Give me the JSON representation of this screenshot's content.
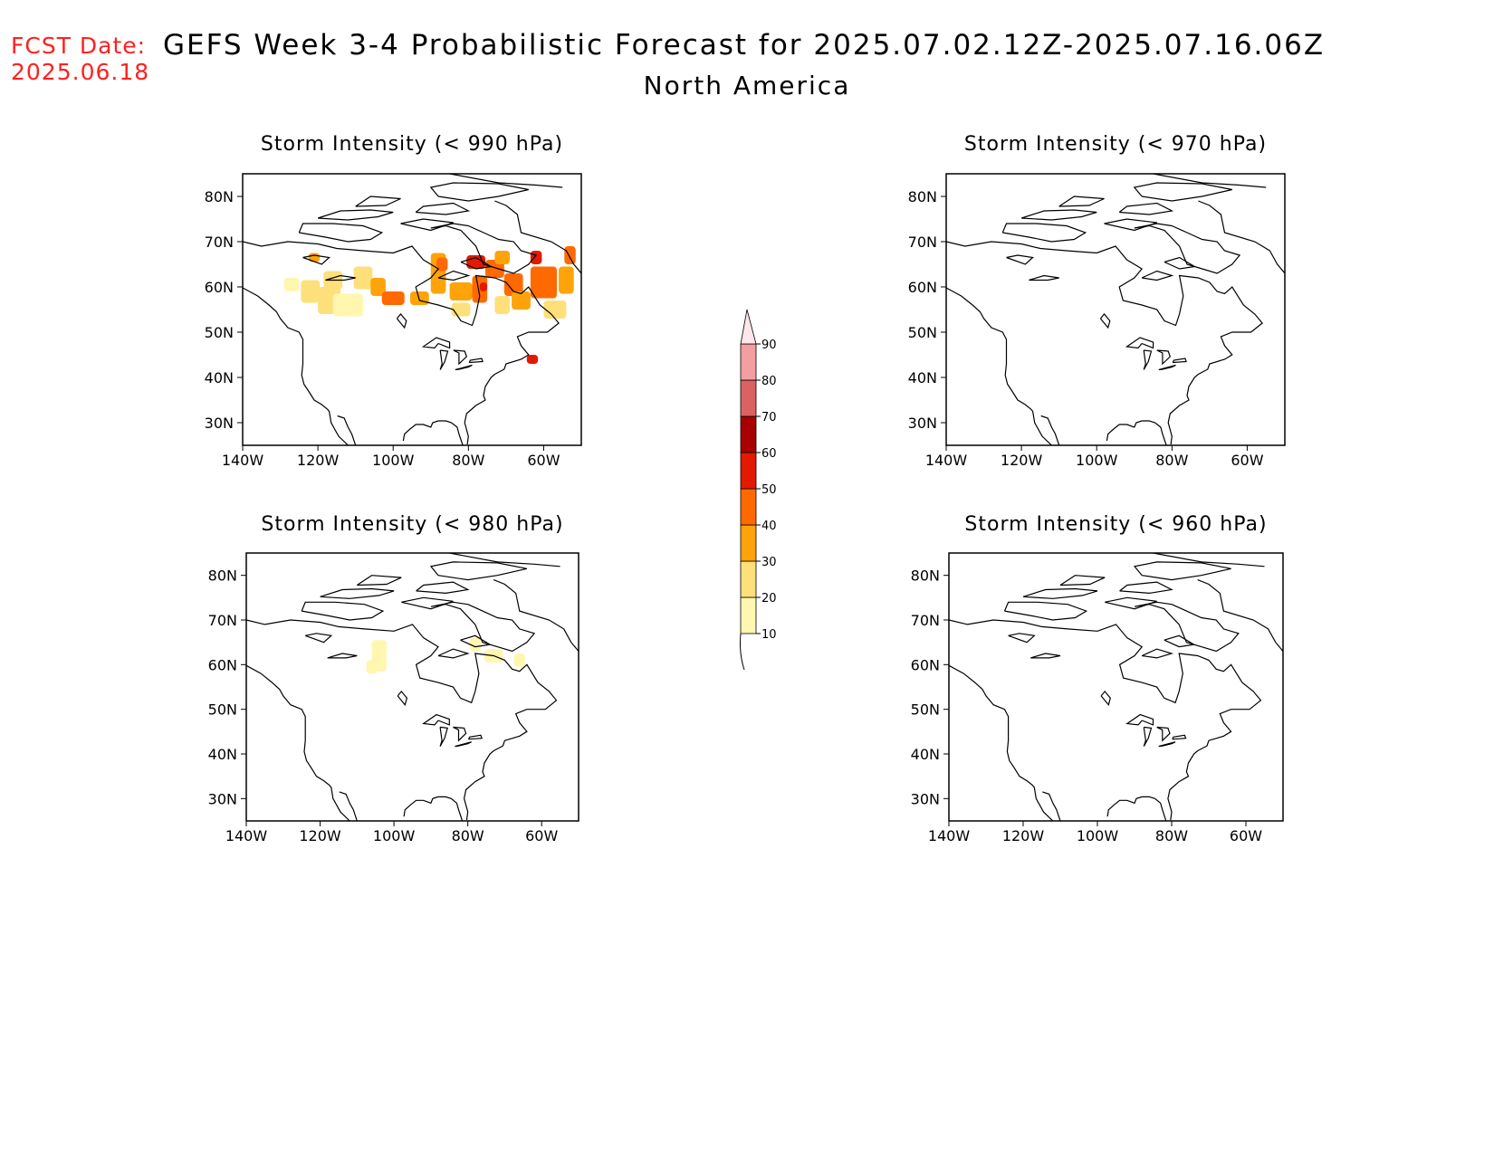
{
  "header": {
    "fcst_label": "FCST Date:",
    "fcst_date": "2025.06.18",
    "title": "GEFS Week 3-4 Probabilistic Forecast for 2025.07.02.12Z-2025.07.16.06Z",
    "subtitle": "North America"
  },
  "x_ticks": [
    "140W",
    "120W",
    "100W",
    "80W",
    "60W"
  ],
  "y_ticks": [
    "80N",
    "70N",
    "60N",
    "50N",
    "40N",
    "30N"
  ],
  "map_extent": {
    "lon": [
      -140,
      -50
    ],
    "lat": [
      25,
      85
    ]
  },
  "panels": [
    {
      "id": "990",
      "title": "Storm Intensity (< 990 hPa)"
    },
    {
      "id": "970",
      "title": "Storm Intensity (< 970 hPa)"
    },
    {
      "id": "980",
      "title": "Storm Intensity (< 980 hPa)"
    },
    {
      "id": "960",
      "title": "Storm Intensity (< 960 hPa)"
    }
  ],
  "colorbar": {
    "labels": [
      "10",
      "20",
      "30",
      "40",
      "50",
      "60",
      "70",
      "80",
      "90"
    ],
    "colors": [
      "#fff6b0",
      "#fde07a",
      "#fea30a",
      "#ff6a00",
      "#e21a00",
      "#a80000",
      "#dc6262",
      "#f39ea0",
      "#ffe6e8"
    ]
  },
  "fields": {
    "990": [
      {
        "lon": -127,
        "lat": 60.5,
        "w": 4,
        "h": 3,
        "level": 0
      },
      {
        "lon": -122,
        "lat": 59,
        "w": 5,
        "h": 5,
        "level": 1
      },
      {
        "lon": -117,
        "lat": 57,
        "w": 6,
        "h": 6,
        "level": 1
      },
      {
        "lon": -112,
        "lat": 56,
        "w": 8,
        "h": 5,
        "level": 0
      },
      {
        "lon": -116,
        "lat": 61.5,
        "w": 5,
        "h": 4,
        "level": 1
      },
      {
        "lon": -108,
        "lat": 62,
        "w": 5,
        "h": 5,
        "level": 1
      },
      {
        "lon": -104,
        "lat": 60,
        "w": 4,
        "h": 4,
        "level": 2
      },
      {
        "lon": -100,
        "lat": 57.5,
        "w": 6,
        "h": 3,
        "level": 3
      },
      {
        "lon": -93,
        "lat": 57.5,
        "w": 5,
        "h": 3,
        "level": 2
      },
      {
        "lon": -88,
        "lat": 63,
        "w": 4,
        "h": 9,
        "level": 2
      },
      {
        "lon": -87,
        "lat": 65,
        "w": 3,
        "h": 3,
        "level": 3
      },
      {
        "lon": -82,
        "lat": 59,
        "w": 6,
        "h": 4,
        "level": 2
      },
      {
        "lon": -77,
        "lat": 59.5,
        "w": 4,
        "h": 6,
        "level": 3
      },
      {
        "lon": -76,
        "lat": 60,
        "w": 2,
        "h": 2,
        "level": 4
      },
      {
        "lon": -78,
        "lat": 65.5,
        "w": 5,
        "h": 3,
        "level": 4
      },
      {
        "lon": -73,
        "lat": 64,
        "w": 5,
        "h": 4,
        "level": 3
      },
      {
        "lon": -71,
        "lat": 66.5,
        "w": 4,
        "h": 3,
        "level": 2
      },
      {
        "lon": -68,
        "lat": 60.5,
        "w": 5,
        "h": 5,
        "level": 3
      },
      {
        "lon": -66,
        "lat": 57,
        "w": 5,
        "h": 4,
        "level": 2
      },
      {
        "lon": -60,
        "lat": 61,
        "w": 7,
        "h": 7,
        "level": 3
      },
      {
        "lon": -62,
        "lat": 66.5,
        "w": 3,
        "h": 3,
        "level": 4
      },
      {
        "lon": -54,
        "lat": 61.5,
        "w": 4,
        "h": 6,
        "level": 2
      },
      {
        "lon": -53,
        "lat": 67,
        "w": 3,
        "h": 4,
        "level": 3
      },
      {
        "lon": -57,
        "lat": 55,
        "w": 6,
        "h": 4,
        "level": 1
      },
      {
        "lon": -71,
        "lat": 56,
        "w": 4,
        "h": 4,
        "level": 1
      },
      {
        "lon": -82,
        "lat": 55,
        "w": 5,
        "h": 3,
        "level": 1
      },
      {
        "lon": -63,
        "lat": 44,
        "w": 3,
        "h": 2,
        "level": 4
      },
      {
        "lon": -121,
        "lat": 66.5,
        "w": 3,
        "h": 2,
        "level": 2
      }
    ],
    "970": [],
    "980": [
      {
        "lon": -104,
        "lat": 62,
        "w": 4,
        "h": 7,
        "level": 0
      },
      {
        "lon": -106,
        "lat": 59.5,
        "w": 3,
        "h": 3,
        "level": 0
      },
      {
        "lon": -78,
        "lat": 64.5,
        "w": 3,
        "h": 3,
        "level": 0
      },
      {
        "lon": -73,
        "lat": 62,
        "w": 5,
        "h": 3,
        "level": 0
      },
      {
        "lon": -66,
        "lat": 61,
        "w": 3,
        "h": 3,
        "level": 0
      }
    ],
    "960": []
  }
}
